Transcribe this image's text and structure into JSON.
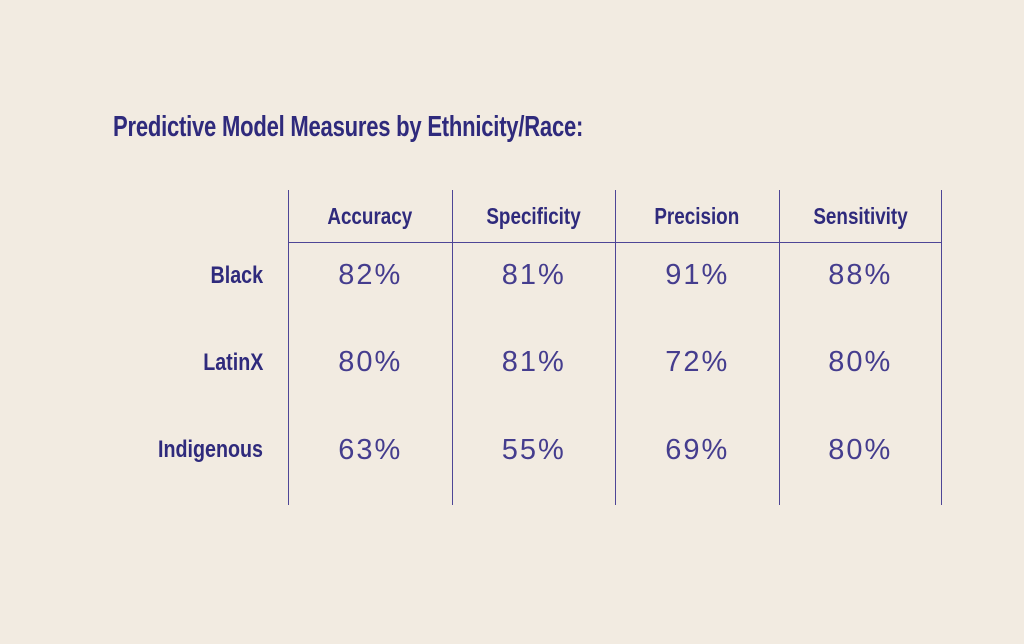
{
  "title": "Predictive Model Measures by Ethnicity/Race:",
  "colors": {
    "background": "#f2ebe1",
    "heading_text": "#2f2a7c",
    "value_text": "#453d8e",
    "grid_line": "#4e4596"
  },
  "table": {
    "columns": [
      "Accuracy",
      "Specificity",
      "Precision",
      "Sensitivity"
    ],
    "rows": [
      {
        "label": "Black",
        "values": [
          "82%",
          "81%",
          "91%",
          "88%"
        ]
      },
      {
        "label": "LatinX",
        "values": [
          "80%",
          "81%",
          "72%",
          "80%"
        ]
      },
      {
        "label": "Indigenous",
        "values": [
          "63%",
          "55%",
          "69%",
          "80%"
        ]
      }
    ]
  },
  "chart_data": {
    "type": "table",
    "title": "Predictive Model Measures by Ethnicity/Race:",
    "columns": [
      "Accuracy",
      "Specificity",
      "Precision",
      "Sensitivity"
    ],
    "row_labels": [
      "Black",
      "LatinX",
      "Indigenous"
    ],
    "values_percent": [
      [
        82,
        81,
        91,
        88
      ],
      [
        80,
        81,
        72,
        80
      ],
      [
        63,
        55,
        69,
        80
      ]
    ]
  }
}
